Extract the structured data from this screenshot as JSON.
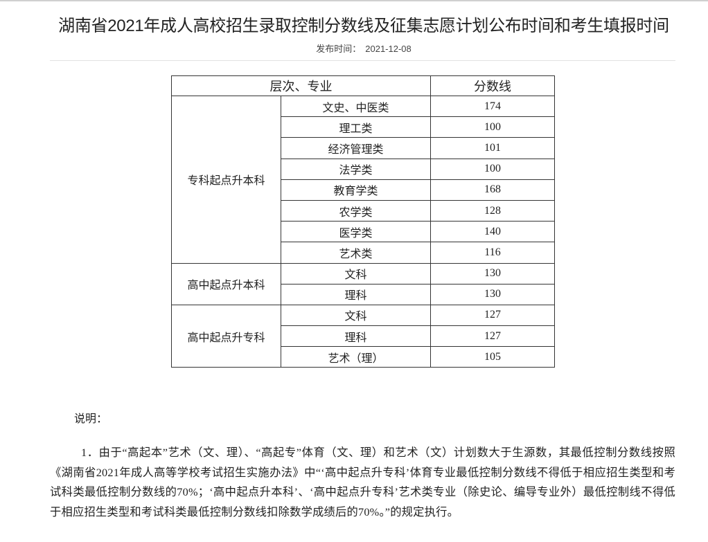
{
  "article": {
    "title": "湖南省2021年成人高校招生录取控制分数线及征集志愿计划公布时间和考生填报时间",
    "publish_label": "发布时间：",
    "publish_date": "2021-12-08"
  },
  "table": {
    "headers": [
      "层次、专业",
      "分数线"
    ],
    "groups": [
      {
        "level": "专科起点升本科",
        "rows": [
          {
            "major": "文史、中医类",
            "score": "174"
          },
          {
            "major": "理工类",
            "score": "100"
          },
          {
            "major": "经济管理类",
            "score": "101"
          },
          {
            "major": "法学类",
            "score": "100"
          },
          {
            "major": "教育学类",
            "score": "168"
          },
          {
            "major": "农学类",
            "score": "128"
          },
          {
            "major": "医学类",
            "score": "140"
          },
          {
            "major": "艺术类",
            "score": "116"
          }
        ]
      },
      {
        "level": "高中起点升本科",
        "rows": [
          {
            "major": "文科",
            "score": "130"
          },
          {
            "major": "理科",
            "score": "130"
          }
        ]
      },
      {
        "level": "高中起点升专科",
        "rows": [
          {
            "major": "文科",
            "score": "127"
          },
          {
            "major": "理科",
            "score": "127"
          },
          {
            "major": "艺术（理）",
            "score": "105"
          }
        ]
      }
    ]
  },
  "notes": {
    "heading": "说明：",
    "paragraph_1": "1．由于“高起本”艺术（文、理）、“高起专”体育（文、理）和艺术（文）计划数大于生源数，其最低控制分数线按照《湖南省2021年成人高等学校考试招生实施办法》中“‘高中起点升专科’体育专业最低控制分数线不得低于相应招生类型和考试科类最低控制分数线的70%；‘高中起点升本科’、‘高中起点升专科’艺术类专业（除史论、编导专业外）最低控制线不得低于相应招生类型和考试科类最低控制分数线扣除数学成绩后的70%。”的规定执行。"
  }
}
